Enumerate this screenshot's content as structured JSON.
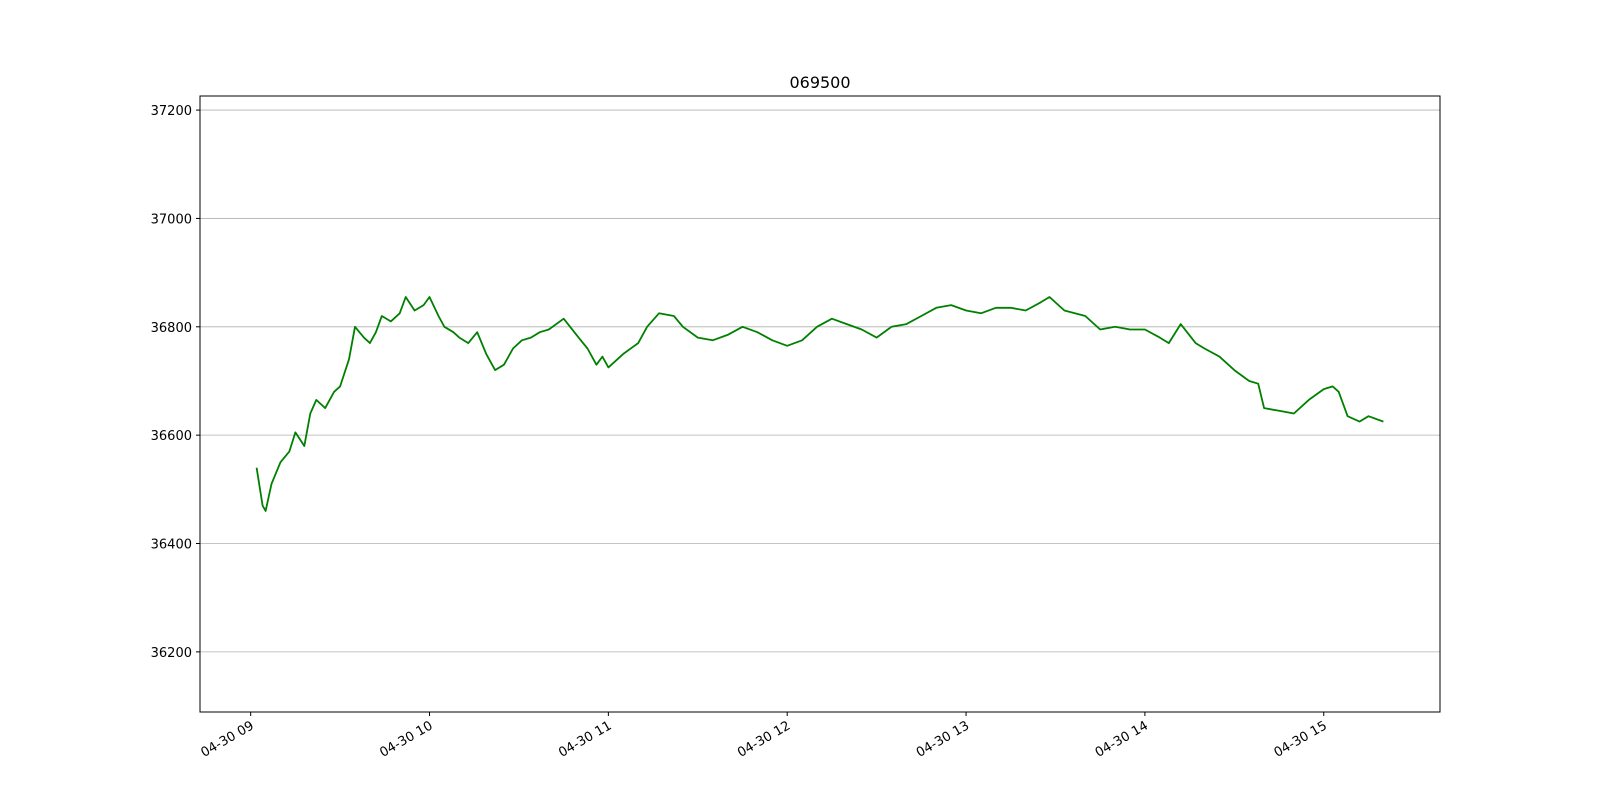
{
  "chart_data": {
    "type": "line",
    "title": "069500",
    "x": [
      "04-30 09:02",
      "04-30 09:04",
      "04-30 09:05",
      "04-30 09:07",
      "04-30 09:10",
      "04-30 09:13",
      "04-30 09:15",
      "04-30 09:18",
      "04-30 09:20",
      "04-30 09:22",
      "04-30 09:25",
      "04-30 09:28",
      "04-30 09:30",
      "04-30 09:33",
      "04-30 09:35",
      "04-30 09:38",
      "04-30 09:40",
      "04-30 09:42",
      "04-30 09:44",
      "04-30 09:47",
      "04-30 09:50",
      "04-30 09:52",
      "04-30 09:55",
      "04-30 09:58",
      "04-30 10:00",
      "04-30 10:03",
      "04-30 10:05",
      "04-30 10:08",
      "04-30 10:10",
      "04-30 10:13",
      "04-30 10:16",
      "04-30 10:19",
      "04-30 10:22",
      "04-30 10:25",
      "04-30 10:28",
      "04-30 10:31",
      "04-30 10:34",
      "04-30 10:37",
      "04-30 10:40",
      "04-30 10:45",
      "04-30 10:50",
      "04-30 10:53",
      "04-30 10:56",
      "04-30 10:58",
      "04-30 11:00",
      "04-30 11:05",
      "04-30 11:10",
      "04-30 11:13",
      "04-30 11:17",
      "04-30 11:22",
      "04-30 11:25",
      "04-30 11:30",
      "04-30 11:35",
      "04-30 11:40",
      "04-30 11:45",
      "04-30 11:50",
      "04-30 11:55",
      "04-30 12:00",
      "04-30 12:05",
      "04-30 12:10",
      "04-30 12:15",
      "04-30 12:20",
      "04-30 12:25",
      "04-30 12:30",
      "04-30 12:35",
      "04-30 12:40",
      "04-30 12:45",
      "04-30 12:50",
      "04-30 12:55",
      "04-30 13:00",
      "04-30 13:05",
      "04-30 13:10",
      "04-30 13:15",
      "04-30 13:20",
      "04-30 13:25",
      "04-30 13:28",
      "04-30 13:33",
      "04-30 13:40",
      "04-30 13:45",
      "04-30 13:50",
      "04-30 13:55",
      "04-30 14:00",
      "04-30 14:05",
      "04-30 14:08",
      "04-30 14:12",
      "04-30 14:17",
      "04-30 14:20",
      "04-30 14:25",
      "04-30 14:30",
      "04-30 14:35",
      "04-30 14:38",
      "04-30 14:40",
      "04-30 14:45",
      "04-30 14:50",
      "04-30 14:55",
      "04-30 15:00",
      "04-30 15:03",
      "04-30 15:05",
      "04-30 15:08",
      "04-30 15:12",
      "04-30 15:15",
      "04-30 15:20"
    ],
    "values": [
      36540,
      36470,
      36460,
      36510,
      36550,
      36570,
      36605,
      36580,
      36640,
      36665,
      36650,
      36680,
      36690,
      36740,
      36800,
      36780,
      36770,
      36790,
      36820,
      36810,
      36825,
      36855,
      36830,
      36840,
      36855,
      36820,
      36800,
      36790,
      36780,
      36770,
      36790,
      36750,
      36720,
      36730,
      36760,
      36775,
      36780,
      36790,
      36795,
      36815,
      36780,
      36760,
      36730,
      36745,
      36725,
      36750,
      36770,
      36800,
      36825,
      36820,
      36800,
      36780,
      36775,
      36785,
      36800,
      36790,
      36775,
      36765,
      36775,
      36800,
      36815,
      36805,
      36795,
      36780,
      36800,
      36805,
      36820,
      36835,
      36840,
      36830,
      36825,
      36835,
      36835,
      36830,
      36845,
      36855,
      36830,
      36820,
      36795,
      36800,
      36795,
      36795,
      36780,
      36770,
      36805,
      36770,
      36760,
      36745,
      36720,
      36700,
      36695,
      36650,
      36645,
      36640,
      36665,
      36685,
      36690,
      36680,
      36635,
      36625,
      36635,
      36625
    ],
    "color": "#008000",
    "xlim": [
      "04-30 08:43",
      "04-30 15:39"
    ],
    "xticks": [
      {
        "value": "04-30 09:00",
        "label": "04-30 09"
      },
      {
        "value": "04-30 10:00",
        "label": "04-30 10"
      },
      {
        "value": "04-30 11:00",
        "label": "04-30 11"
      },
      {
        "value": "04-30 12:00",
        "label": "04-30 12"
      },
      {
        "value": "04-30 13:00",
        "label": "04-30 13"
      },
      {
        "value": "04-30 14:00",
        "label": "04-30 14"
      },
      {
        "value": "04-30 15:00",
        "label": "04-30 15"
      }
    ],
    "ylim": [
      36089,
      37226
    ],
    "yticks": [
      36200,
      36400,
      36600,
      36800,
      37000,
      37200
    ],
    "grid": true
  }
}
